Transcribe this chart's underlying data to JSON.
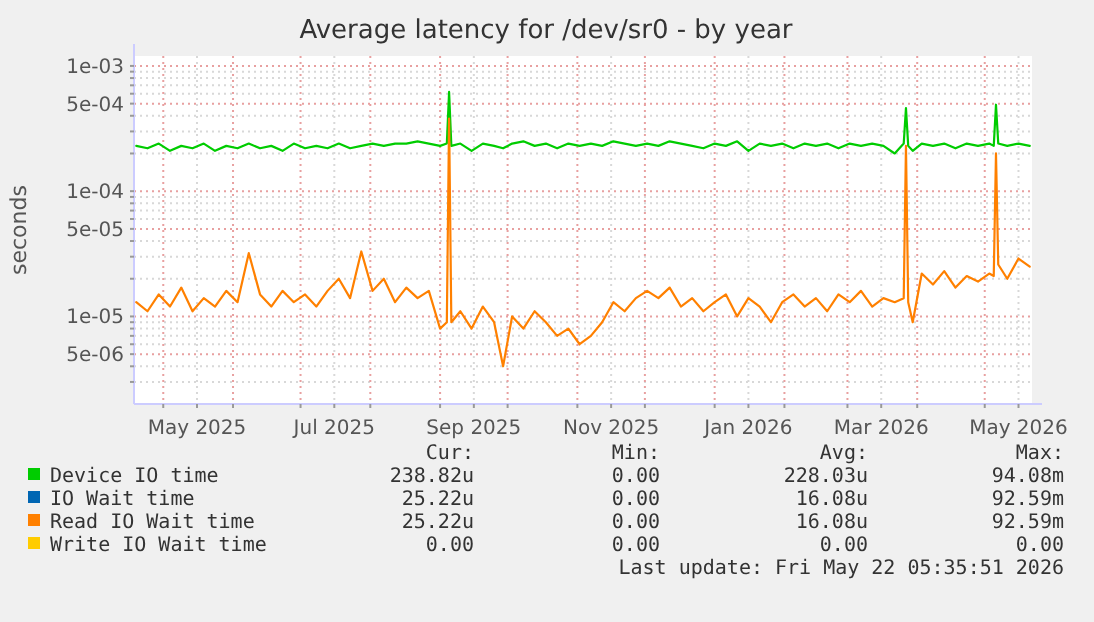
{
  "chart_data": {
    "type": "line",
    "title": "Average latency for /dev/sr0 - by year",
    "ylabel": "seconds",
    "log": true,
    "grid": true,
    "legend": "bottom",
    "marker": "none",
    "line_style": "solid",
    "xlim": [
      "2025-04-18",
      "2026-05-22"
    ],
    "xticks": [
      {
        "value": "2025-05-01",
        "label": null
      },
      {
        "value": "2025-05-16",
        "label": "May 2025"
      },
      {
        "value": "2025-06-01",
        "label": null
      },
      {
        "value": "2025-07-01",
        "label": null
      },
      {
        "value": "2025-07-16",
        "label": "Jul 2025"
      },
      {
        "value": "2025-08-01",
        "label": null
      },
      {
        "value": "2025-09-01",
        "label": null
      },
      {
        "value": "2025-09-16",
        "label": "Sep 2025"
      },
      {
        "value": "2025-10-01",
        "label": null
      },
      {
        "value": "2025-11-01",
        "label": null
      },
      {
        "value": "2025-11-16",
        "label": "Nov 2025"
      },
      {
        "value": "2025-12-01",
        "label": null
      },
      {
        "value": "2026-01-01",
        "label": null
      },
      {
        "value": "2026-01-16",
        "label": "Jan 2026"
      },
      {
        "value": "2026-02-01",
        "label": null
      },
      {
        "value": "2026-03-01",
        "label": null
      },
      {
        "value": "2026-03-16",
        "label": "Mar 2026"
      },
      {
        "value": "2026-04-01",
        "label": null
      },
      {
        "value": "2026-05-01",
        "label": null
      },
      {
        "value": "2026-05-16",
        "label": "May 2026"
      }
    ],
    "ylim": [
      2e-06,
      0.0012
    ],
    "yticks": [
      {
        "value": 3e-06,
        "label": null
      },
      {
        "value": 4e-06,
        "label": null
      },
      {
        "value": 5e-06,
        "label": "5e-06"
      },
      {
        "value": 6e-06,
        "label": null
      },
      {
        "value": 7e-06,
        "label": null
      },
      {
        "value": 8e-06,
        "label": null
      },
      {
        "value": 9e-06,
        "label": null
      },
      {
        "value": 1e-05,
        "label": "1e-05"
      },
      {
        "value": 2e-05,
        "label": null
      },
      {
        "value": 3e-05,
        "label": null
      },
      {
        "value": 4e-05,
        "label": null
      },
      {
        "value": 5e-05,
        "label": "5e-05"
      },
      {
        "value": 6e-05,
        "label": null
      },
      {
        "value": 7e-05,
        "label": null
      },
      {
        "value": 8e-05,
        "label": null
      },
      {
        "value": 9e-05,
        "label": null
      },
      {
        "value": 0.0001,
        "label": "1e-04"
      },
      {
        "value": 0.0002,
        "label": null
      },
      {
        "value": 0.0003,
        "label": null
      },
      {
        "value": 0.0004,
        "label": null
      },
      {
        "value": 0.0005,
        "label": "5e-04"
      },
      {
        "value": 0.0006,
        "label": null
      },
      {
        "value": 0.0007,
        "label": null
      },
      {
        "value": 0.0008,
        "label": null
      },
      {
        "value": 0.0009,
        "label": null
      },
      {
        "value": 0.001,
        "label": "1e-03"
      }
    ],
    "x": [
      "2025-04-19",
      "2025-04-24",
      "2025-04-29",
      "2025-05-04",
      "2025-05-09",
      "2025-05-14",
      "2025-05-19",
      "2025-05-24",
      "2025-05-29",
      "2025-06-03",
      "2025-06-08",
      "2025-06-13",
      "2025-06-18",
      "2025-06-23",
      "2025-06-28",
      "2025-07-03",
      "2025-07-08",
      "2025-07-13",
      "2025-07-18",
      "2025-07-23",
      "2025-07-28",
      "2025-08-02",
      "2025-08-07",
      "2025-08-12",
      "2025-08-17",
      "2025-08-22",
      "2025-08-27",
      "2025-09-01",
      "2025-09-04",
      "2025-09-05",
      "2025-09-06",
      "2025-09-10",
      "2025-09-15",
      "2025-09-20",
      "2025-09-25",
      "2025-09-29",
      "2025-10-03",
      "2025-10-08",
      "2025-10-13",
      "2025-10-18",
      "2025-10-23",
      "2025-10-28",
      "2025-11-02",
      "2025-11-07",
      "2025-11-12",
      "2025-11-17",
      "2025-11-22",
      "2025-11-27",
      "2025-12-02",
      "2025-12-07",
      "2025-12-12",
      "2025-12-17",
      "2025-12-22",
      "2025-12-27",
      "2026-01-01",
      "2026-01-06",
      "2026-01-11",
      "2026-01-16",
      "2026-01-21",
      "2026-01-26",
      "2026-01-31",
      "2026-02-05",
      "2026-02-10",
      "2026-02-15",
      "2026-02-20",
      "2026-02-25",
      "2026-03-02",
      "2026-03-07",
      "2026-03-12",
      "2026-03-17",
      "2026-03-22",
      "2026-03-26",
      "2026-03-27",
      "2026-03-28",
      "2026-03-30",
      "2026-04-03",
      "2026-04-08",
      "2026-04-13",
      "2026-04-18",
      "2026-04-23",
      "2026-04-28",
      "2026-05-03",
      "2026-05-05",
      "2026-05-06",
      "2026-05-07",
      "2026-05-11",
      "2026-05-16",
      "2026-05-21"
    ],
    "series": [
      {
        "name": "Device IO time",
        "color": "#00cc00",
        "values": [
          0.00023,
          0.00022,
          0.00024,
          0.00021,
          0.00023,
          0.00022,
          0.00024,
          0.00021,
          0.00023,
          0.00022,
          0.00024,
          0.00022,
          0.00023,
          0.00021,
          0.00024,
          0.00022,
          0.00023,
          0.00022,
          0.00024,
          0.00022,
          0.00023,
          0.00024,
          0.00023,
          0.00024,
          0.00024,
          0.00025,
          0.00024,
          0.00023,
          0.00024,
          0.00062,
          0.00023,
          0.00024,
          0.00021,
          0.00024,
          0.00023,
          0.00022,
          0.00024,
          0.00025,
          0.00023,
          0.00024,
          0.00022,
          0.00024,
          0.00023,
          0.00024,
          0.00023,
          0.00025,
          0.00024,
          0.00023,
          0.00024,
          0.00023,
          0.00025,
          0.00024,
          0.00023,
          0.00022,
          0.00024,
          0.00023,
          0.00025,
          0.00021,
          0.00024,
          0.00023,
          0.00024,
          0.00022,
          0.00024,
          0.00023,
          0.00024,
          0.00022,
          0.00024,
          0.00023,
          0.00024,
          0.00023,
          0.0002,
          0.00024,
          0.00046,
          0.00023,
          0.00021,
          0.00024,
          0.00023,
          0.00024,
          0.00022,
          0.00024,
          0.00023,
          0.00024,
          0.00023,
          0.00049,
          0.00024,
          0.00023,
          0.00024,
          0.00023
        ]
      },
      {
        "name": "IO Wait time",
        "color": "#0066b3",
        "values": [
          null,
          null,
          null,
          null,
          null,
          null,
          null,
          null,
          null,
          null,
          null,
          null,
          null,
          null,
          null,
          null,
          null,
          null,
          null,
          null,
          null,
          null,
          null,
          null,
          null,
          null,
          null,
          null,
          null,
          null,
          null,
          null,
          null,
          null,
          null,
          null,
          null,
          null,
          null,
          null,
          null,
          null,
          null,
          null,
          null,
          null,
          null,
          null,
          null,
          null,
          null,
          null,
          null,
          null,
          null,
          null,
          null,
          null,
          null,
          null,
          null,
          null,
          null,
          null,
          null,
          null,
          null,
          null,
          null,
          null,
          null,
          null,
          null,
          null,
          null,
          null,
          null,
          null,
          null,
          null,
          null,
          null,
          null,
          null,
          null,
          null,
          null,
          null
        ]
      },
      {
        "name": "Read IO Wait time",
        "color": "#ff8000",
        "values": [
          1.3e-05,
          1.1e-05,
          1.5e-05,
          1.2e-05,
          1.7e-05,
          1.1e-05,
          1.4e-05,
          1.2e-05,
          1.6e-05,
          1.3e-05,
          3.2e-05,
          1.5e-05,
          1.2e-05,
          1.6e-05,
          1.3e-05,
          1.5e-05,
          1.2e-05,
          1.6e-05,
          2e-05,
          1.4e-05,
          3.3e-05,
          1.6e-05,
          2e-05,
          1.3e-05,
          1.7e-05,
          1.4e-05,
          1.6e-05,
          8e-06,
          9e-06,
          0.00038,
          9e-06,
          1.1e-05,
          8e-06,
          1.2e-05,
          9e-06,
          4e-06,
          1e-05,
          8e-06,
          1.1e-05,
          9e-06,
          7e-06,
          8e-06,
          6e-06,
          7e-06,
          9e-06,
          1.3e-05,
          1.1e-05,
          1.4e-05,
          1.6e-05,
          1.4e-05,
          1.7e-05,
          1.2e-05,
          1.4e-05,
          1.1e-05,
          1.3e-05,
          1.5e-05,
          1e-05,
          1.4e-05,
          1.2e-05,
          9e-06,
          1.3e-05,
          1.5e-05,
          1.2e-05,
          1.4e-05,
          1.1e-05,
          1.5e-05,
          1.3e-05,
          1.6e-05,
          1.2e-05,
          1.4e-05,
          1.3e-05,
          1.4e-05,
          0.00023,
          1.3e-05,
          9e-06,
          2.2e-05,
          1.8e-05,
          2.3e-05,
          1.7e-05,
          2.1e-05,
          1.9e-05,
          2.2e-05,
          2.1e-05,
          0.0002,
          2.6e-05,
          2e-05,
          2.9e-05,
          2.5e-05
        ]
      },
      {
        "name": "Write IO Wait time",
        "color": "#ffcc00",
        "values": [
          null,
          null,
          null,
          null,
          null,
          null,
          null,
          null,
          null,
          null,
          null,
          null,
          null,
          null,
          null,
          null,
          null,
          null,
          null,
          null,
          null,
          null,
          null,
          null,
          null,
          null,
          null,
          null,
          null,
          null,
          null,
          null,
          null,
          null,
          null,
          null,
          null,
          null,
          null,
          null,
          null,
          null,
          null,
          null,
          null,
          null,
          null,
          null,
          null,
          null,
          null,
          null,
          null,
          null,
          null,
          null,
          null,
          null,
          null,
          null,
          null,
          null,
          null,
          null,
          null,
          null,
          null,
          null,
          null,
          null,
          null,
          null,
          null,
          null,
          null,
          null,
          null,
          null,
          null,
          null,
          null,
          null,
          null,
          null,
          null,
          null,
          null,
          null
        ]
      }
    ],
    "annotations": [
      "Cur:",
      "Min:",
      "Avg:",
      "Max:",
      "238.82u",
      "0.00",
      "228.03u",
      "94.08m",
      "25.22u",
      "0.00",
      "16.08u",
      "92.59m",
      "25.22u",
      "0.00",
      "16.08u",
      "92.59m",
      "0.00",
      "0.00",
      "0.00",
      "0.00",
      "Last update: Fri May 22 05:35:51 2026"
    ]
  }
}
